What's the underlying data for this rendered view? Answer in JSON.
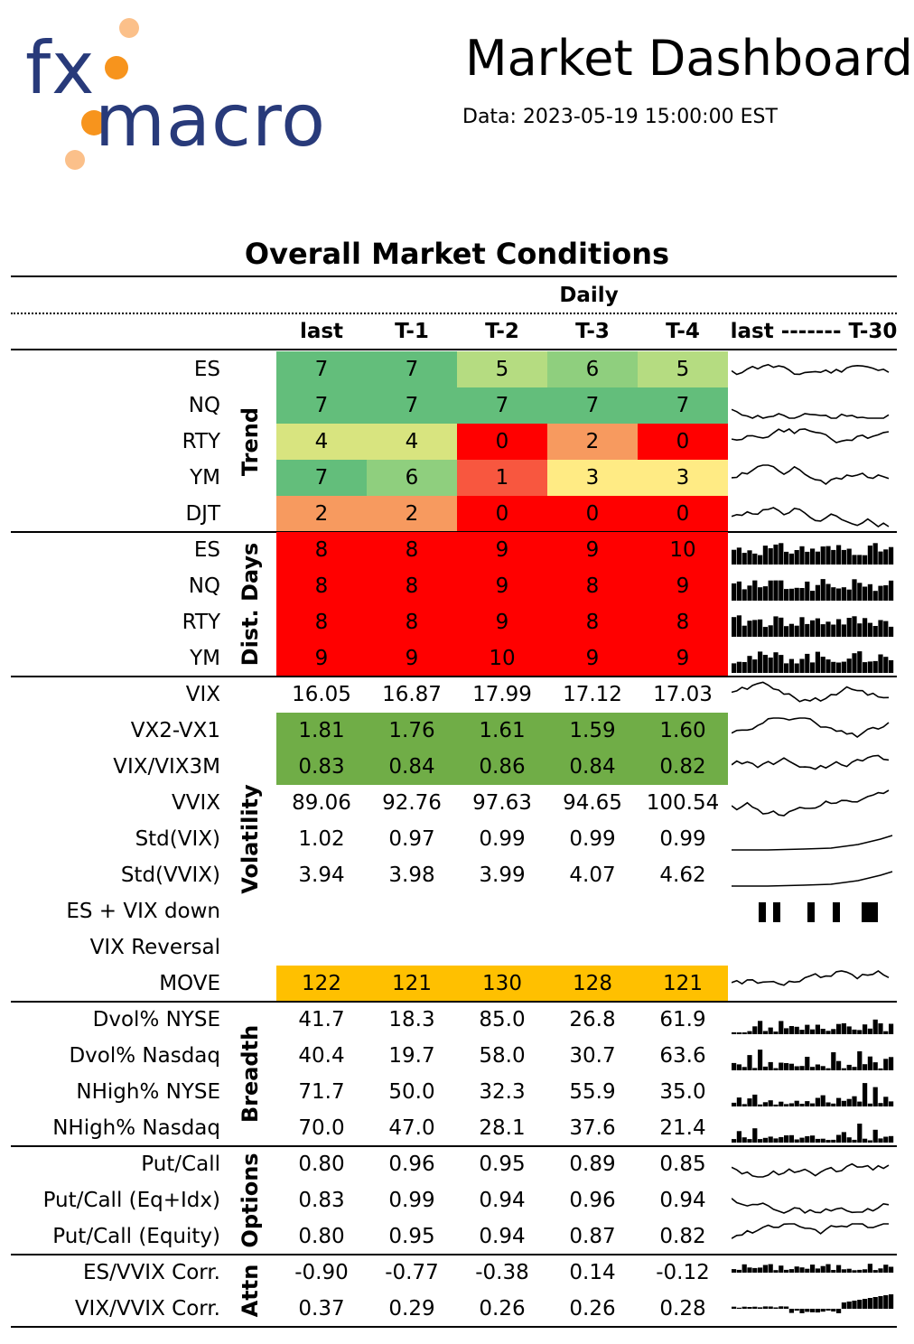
{
  "brand": {
    "logo_part1": "fx",
    "logo_part2": "macro"
  },
  "header": {
    "title": "Market Dashboard",
    "subtitle": "Data: 2023-05-19 15:00:00 EST"
  },
  "section_title": "Overall Market Conditions",
  "group_header": "Daily",
  "columns": [
    "last",
    "T-1",
    "T-2",
    "T-3",
    "T-4",
    "last ------- T-30"
  ],
  "colors": {
    "dark_green": "#63be7b",
    "mid_green": "#8fcf7e",
    "light_green": "#b5dc81",
    "yellow_green": "#d8e47f",
    "yellow": "#ffeb84",
    "orange": "#f79a5f",
    "red_orange": "#f8573f",
    "red": "#ff0000",
    "olive_green": "#70ad47",
    "amber": "#ffc000"
  },
  "groups": [
    {
      "name": "Trend",
      "rows": [
        {
          "label": "ES",
          "values": [
            "7",
            "7",
            "5",
            "6",
            "5"
          ],
          "colors": [
            "dark_green",
            "dark_green",
            "light_green",
            "mid_green",
            "light_green"
          ]
        },
        {
          "label": "NQ",
          "values": [
            "7",
            "7",
            "7",
            "7",
            "7"
          ],
          "colors": [
            "dark_green",
            "dark_green",
            "dark_green",
            "dark_green",
            "dark_green"
          ]
        },
        {
          "label": "RTY",
          "values": [
            "4",
            "4",
            "0",
            "2",
            "0"
          ],
          "colors": [
            "yellow_green",
            "yellow_green",
            "red",
            "orange",
            "red"
          ]
        },
        {
          "label": "YM",
          "values": [
            "7",
            "6",
            "1",
            "3",
            "3"
          ],
          "colors": [
            "dark_green",
            "mid_green",
            "red_orange",
            "yellow",
            "yellow"
          ]
        },
        {
          "label": "DJT",
          "values": [
            "2",
            "2",
            "0",
            "0",
            "0"
          ],
          "colors": [
            "orange",
            "orange",
            "red",
            "red",
            "red"
          ]
        }
      ]
    },
    {
      "name": "Dist. Days",
      "rows": [
        {
          "label": "ES",
          "values": [
            "8",
            "8",
            "9",
            "9",
            "10"
          ],
          "colors": [
            "red",
            "red",
            "red",
            "red",
            "red"
          ]
        },
        {
          "label": "NQ",
          "values": [
            "8",
            "8",
            "9",
            "8",
            "9"
          ],
          "colors": [
            "red",
            "red",
            "red",
            "red",
            "red"
          ]
        },
        {
          "label": "RTY",
          "values": [
            "8",
            "8",
            "9",
            "8",
            "8"
          ],
          "colors": [
            "red",
            "red",
            "red",
            "red",
            "red"
          ]
        },
        {
          "label": "YM",
          "values": [
            "9",
            "9",
            "10",
            "9",
            "9"
          ],
          "colors": [
            "red",
            "red",
            "red",
            "red",
            "red"
          ]
        }
      ]
    },
    {
      "name": "Volatility",
      "rows": [
        {
          "label": "VIX",
          "values": [
            "16.05",
            "16.87",
            "17.99",
            "17.12",
            "17.03"
          ]
        },
        {
          "label": "VX2-VX1",
          "values": [
            "1.81",
            "1.76",
            "1.61",
            "1.59",
            "1.60"
          ],
          "colors": [
            "olive_green",
            "olive_green",
            "olive_green",
            "olive_green",
            "olive_green"
          ]
        },
        {
          "label": "VIX/VIX3M",
          "values": [
            "0.83",
            "0.84",
            "0.86",
            "0.84",
            "0.82"
          ],
          "colors": [
            "olive_green",
            "olive_green",
            "olive_green",
            "olive_green",
            "olive_green"
          ]
        },
        {
          "label": "VVIX",
          "values": [
            "89.06",
            "92.76",
            "97.63",
            "94.65",
            "100.54"
          ]
        },
        {
          "label": "Std(VIX)",
          "values": [
            "1.02",
            "0.97",
            "0.99",
            "0.99",
            "0.99"
          ]
        },
        {
          "label": "Std(VVIX)",
          "values": [
            "3.94",
            "3.98",
            "3.99",
            "4.07",
            "4.62"
          ]
        },
        {
          "label": "ES + VIX down",
          "values": [
            "",
            "",
            "",
            "",
            ""
          ]
        },
        {
          "label": "VIX Reversal",
          "values": [
            "",
            "",
            "",
            "",
            ""
          ]
        },
        {
          "label": "MOVE",
          "values": [
            "122",
            "121",
            "130",
            "128",
            "121"
          ],
          "colors": [
            "amber",
            "amber",
            "amber",
            "amber",
            "amber"
          ]
        }
      ]
    },
    {
      "name": "Breadth",
      "rows": [
        {
          "label": "Dvol% NYSE",
          "values": [
            "41.7",
            "18.3",
            "85.0",
            "26.8",
            "61.9"
          ]
        },
        {
          "label": "Dvol% Nasdaq",
          "values": [
            "40.4",
            "19.7",
            "58.0",
            "30.7",
            "63.6"
          ]
        },
        {
          "label": "NHigh% NYSE",
          "values": [
            "71.7",
            "50.0",
            "32.3",
            "55.9",
            "35.0"
          ]
        },
        {
          "label": "NHigh% Nasdaq",
          "values": [
            "70.0",
            "47.0",
            "28.1",
            "37.6",
            "21.4"
          ]
        }
      ]
    },
    {
      "name": "Options",
      "rows": [
        {
          "label": "Put/Call",
          "values": [
            "0.80",
            "0.96",
            "0.95",
            "0.89",
            "0.85"
          ]
        },
        {
          "label": "Put/Call (Eq+Idx)",
          "values": [
            "0.83",
            "0.99",
            "0.94",
            "0.96",
            "0.94"
          ]
        },
        {
          "label": "Put/Call (Equity)",
          "values": [
            "0.80",
            "0.95",
            "0.94",
            "0.87",
            "0.82"
          ]
        }
      ]
    },
    {
      "name": "Attn",
      "rows": [
        {
          "label": "ES/VVIX Corr.",
          "values": [
            "-0.90",
            "-0.77",
            "-0.38",
            "0.14",
            "-0.12"
          ]
        },
        {
          "label": "VIX/VVIX Corr.",
          "values": [
            "0.37",
            "0.29",
            "0.26",
            "0.26",
            "0.28"
          ]
        }
      ]
    }
  ]
}
